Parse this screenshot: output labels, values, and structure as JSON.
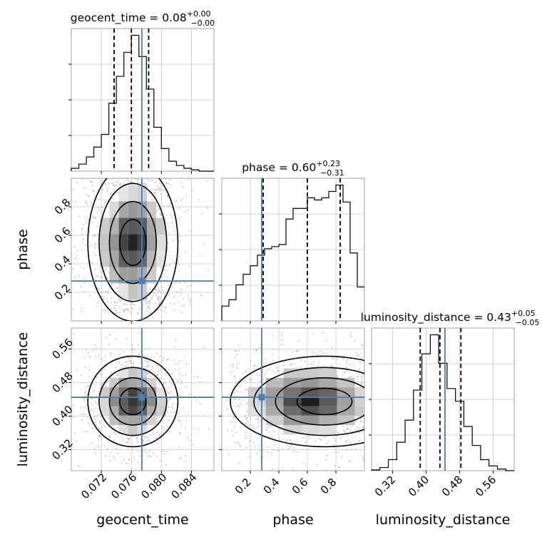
{
  "chart_data": {
    "type": "corner",
    "parameters": [
      "geocent_time",
      "phase",
      "luminosity_distance"
    ],
    "truth": {
      "geocent_time": 0.0774,
      "phase": 0.28,
      "luminosity_distance": 0.445
    },
    "accent_color": "#4682b4",
    "grid": true,
    "diagonals": [
      {
        "param": "geocent_time",
        "title_main": "geocent_time = 0.08",
        "title_sup": "+0.00",
        "title_sub": "−0.00",
        "xlim": [
          0.068,
          0.087
        ],
        "quantiles": [
          0.0737,
          0.076,
          0.0783
        ],
        "truth": 0.0774,
        "hist_x": [
          0.068,
          0.069,
          0.07,
          0.071,
          0.072,
          0.073,
          0.074,
          0.075,
          0.076,
          0.077,
          0.078,
          0.079,
          0.08,
          0.081,
          0.082,
          0.083,
          0.084,
          0.085,
          0.086
        ],
        "hist_y": [
          2,
          5,
          10,
          17,
          26,
          48,
          67,
          84,
          96,
          81,
          58,
          31,
          16,
          7,
          4,
          2,
          1,
          0,
          0
        ]
      },
      {
        "param": "phase",
        "title_main": "phase = 0.60",
        "title_sup": "+0.23",
        "title_sub": "−0.31",
        "xlim": [
          0.0,
          1.0
        ],
        "quantiles": [
          0.29,
          0.6,
          0.83
        ],
        "truth": 0.28,
        "hist_x": [
          0.0,
          0.05,
          0.1,
          0.15,
          0.2,
          0.25,
          0.3,
          0.35,
          0.4,
          0.45,
          0.5,
          0.55,
          0.6,
          0.65,
          0.7,
          0.75,
          0.8,
          0.85,
          0.9,
          0.95
        ],
        "hist_y": [
          7,
          10,
          17,
          22,
          26,
          31,
          34,
          35,
          36,
          48,
          53,
          53,
          58,
          57,
          58,
          61,
          64,
          56,
          32,
          16
        ]
      },
      {
        "param": "luminosity_distance",
        "title_main": "luminosity_distance = 0.43",
        "title_sup": "+0.05",
        "title_sub": "−0.05",
        "xlim": [
          0.27,
          0.61
        ],
        "quantiles": [
          0.386,
          0.433,
          0.483
        ],
        "truth": 0.445,
        "hist_x": [
          0.27,
          0.29,
          0.31,
          0.33,
          0.35,
          0.37,
          0.39,
          0.41,
          0.43,
          0.45,
          0.47,
          0.49,
          0.51,
          0.53,
          0.55,
          0.57,
          0.59
        ],
        "hist_y": [
          0.5,
          2,
          7,
          18,
          32,
          51,
          74,
          86,
          68,
          52,
          44,
          28,
          16,
          7,
          3,
          1,
          0
        ]
      }
    ],
    "ticks": {
      "geocent_time": [
        "0.072",
        "0.076",
        "0.080",
        "0.084"
      ],
      "phase": [
        "0.2",
        "0.4",
        "0.6",
        "0.8"
      ],
      "luminosity_distance": [
        "0.32",
        "0.40",
        "0.48",
        "0.56"
      ]
    },
    "tick_values": {
      "geocent_time": [
        0.072,
        0.076,
        0.08,
        0.084
      ],
      "phase": [
        0.2,
        0.4,
        0.6,
        0.8
      ],
      "luminosity_distance": [
        0.32,
        0.4,
        0.48,
        0.56
      ]
    },
    "ylim": {
      "phase": [
        0.0,
        1.0
      ],
      "luminosity_distance": [
        0.27,
        0.61
      ]
    },
    "xlabels": [
      "geocent_time",
      "phase",
      "luminosity_distance"
    ],
    "ylabels": {
      "phase": "phase",
      "luminosity_distance": "luminosity_distance"
    }
  }
}
